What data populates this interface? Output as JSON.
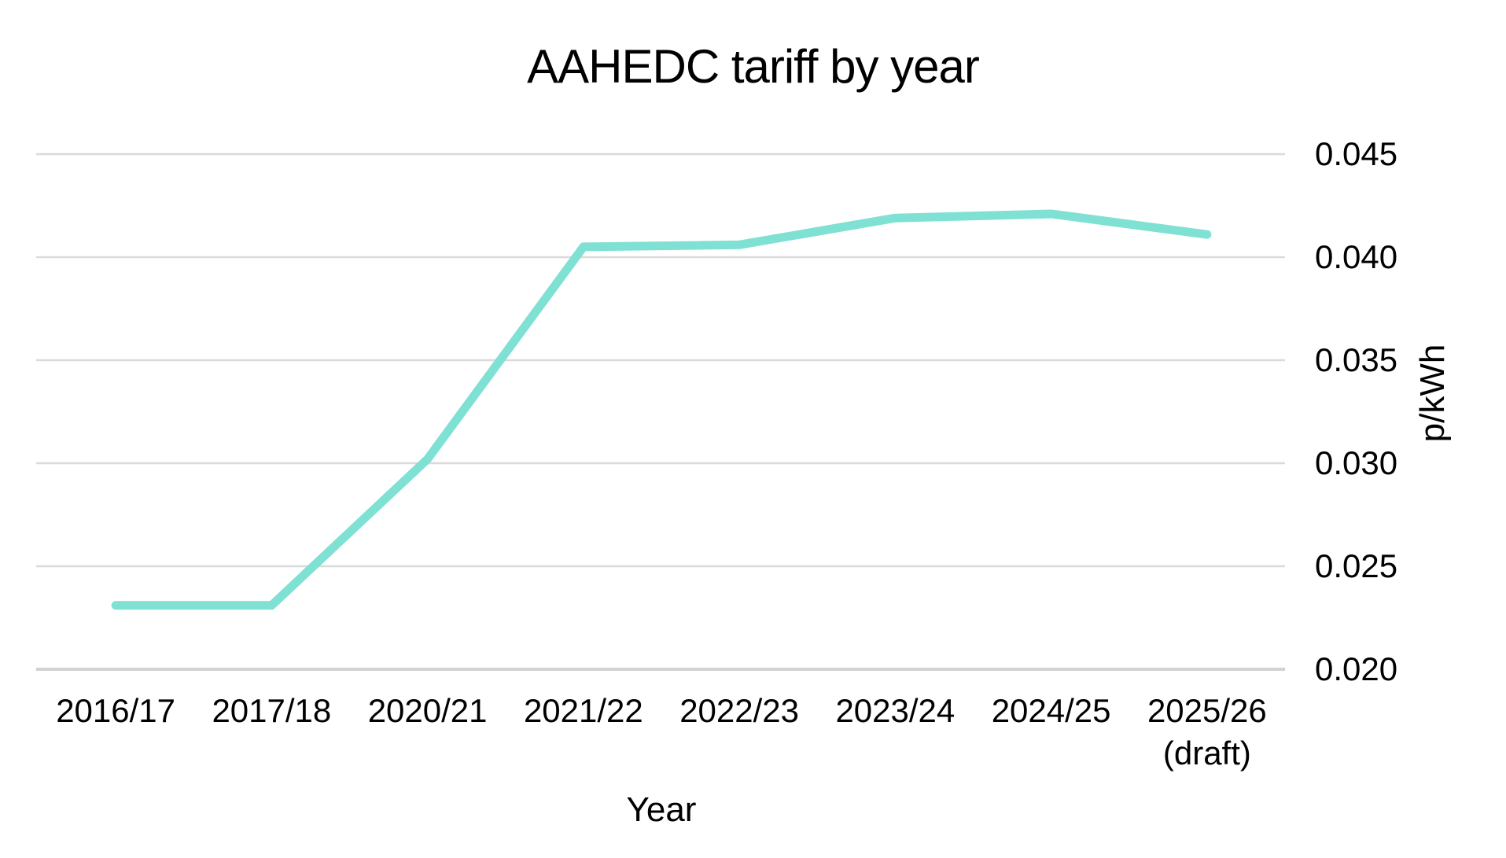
{
  "chart": {
    "title": "AAHEDC tariff by year",
    "xlabel": "Year",
    "ylabel": "p/kWh"
  },
  "chart_data": {
    "type": "line",
    "title": "AAHEDC tariff by year",
    "xlabel": "Year",
    "ylabel": "p/kWh",
    "categories": [
      "2016/17",
      "2017/18",
      "2020/21",
      "2021/22",
      "2022/23",
      "2023/24",
      "2024/25",
      "2025/26"
    ],
    "category_sublabels": [
      "",
      "",
      "",
      "",
      "",
      "",
      "",
      "(draft)"
    ],
    "values": [
      0.0231,
      0.0231,
      0.0302,
      0.0405,
      0.0406,
      0.0419,
      0.0421,
      0.0411
    ],
    "ylim": [
      0.02,
      0.045
    ],
    "yticks": [
      0.02,
      0.025,
      0.03,
      0.035,
      0.04,
      0.045
    ],
    "ytick_decimals": 3,
    "grid": "horizontal",
    "legend": "none",
    "line_color": "#7FE0D4",
    "gridline_color": "#DADADA",
    "axisline_color": "#D2D2D2",
    "text_color": "#000000",
    "background": "#FFFFFF"
  }
}
